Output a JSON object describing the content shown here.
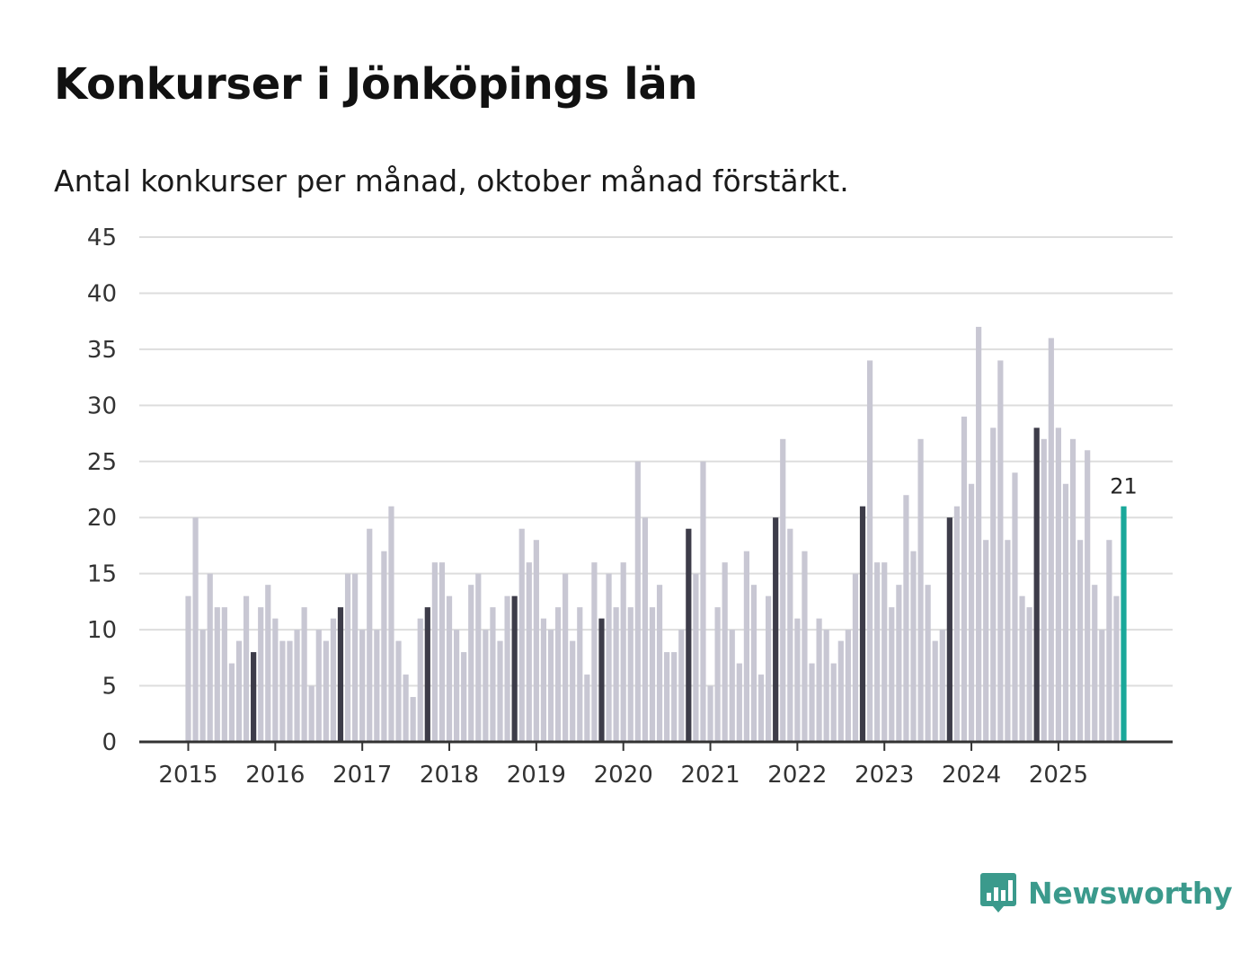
{
  "header": {
    "title": "Konkurser i Jönköpings län",
    "subtitle": "Antal konkurser per månad, oktober månad förstärkt."
  },
  "brand": {
    "name": "Newsworthy",
    "icon": "bar-chart-speech-bubble-icon"
  },
  "colors": {
    "bar_default": "#c8c7d3",
    "bar_october": "#3d3c49",
    "bar_latest": "#1aa89a",
    "grid": "#dddddd",
    "axis": "#333333",
    "brand": "#3b9a8c"
  },
  "chart_data": {
    "type": "bar",
    "title": "Konkurser i Jönköpings län",
    "subtitle": "Antal konkurser per månad, oktober månad förstärkt.",
    "xlabel": "",
    "ylabel": "",
    "ylim": [
      0,
      45
    ],
    "yticks": [
      0,
      5,
      10,
      15,
      20,
      25,
      30,
      35,
      40,
      45
    ],
    "grid": true,
    "start": "2015-01",
    "highlight_month": 10,
    "xtick_labels": [
      "2015",
      "2016",
      "2017",
      "2018",
      "2019",
      "2020",
      "2021",
      "2022",
      "2023",
      "2024",
      "2025"
    ],
    "values": [
      13,
      20,
      10,
      15,
      12,
      12,
      7,
      9,
      13,
      8,
      12,
      14,
      11,
      9,
      9,
      10,
      12,
      5,
      10,
      9,
      11,
      12,
      15,
      15,
      10,
      19,
      10,
      17,
      21,
      9,
      6,
      4,
      11,
      12,
      16,
      16,
      13,
      10,
      8,
      14,
      15,
      10,
      12,
      9,
      13,
      13,
      19,
      16,
      18,
      11,
      10,
      12,
      15,
      9,
      12,
      6,
      16,
      11,
      15,
      12,
      16,
      12,
      25,
      20,
      12,
      14,
      8,
      8,
      10,
      19,
      15,
      25,
      5,
      12,
      16,
      10,
      7,
      17,
      14,
      6,
      13,
      20,
      27,
      19,
      11,
      17,
      7,
      11,
      10,
      7,
      9,
      10,
      15,
      21,
      34,
      16,
      16,
      12,
      14,
      22,
      17,
      27,
      14,
      9,
      10,
      20,
      21,
      29,
      23,
      37,
      18,
      28,
      34,
      18,
      24,
      13,
      12,
      28,
      27,
      36,
      28,
      23,
      27,
      18,
      26,
      14,
      10,
      18,
      13,
      21
    ],
    "latest_label": "21"
  }
}
